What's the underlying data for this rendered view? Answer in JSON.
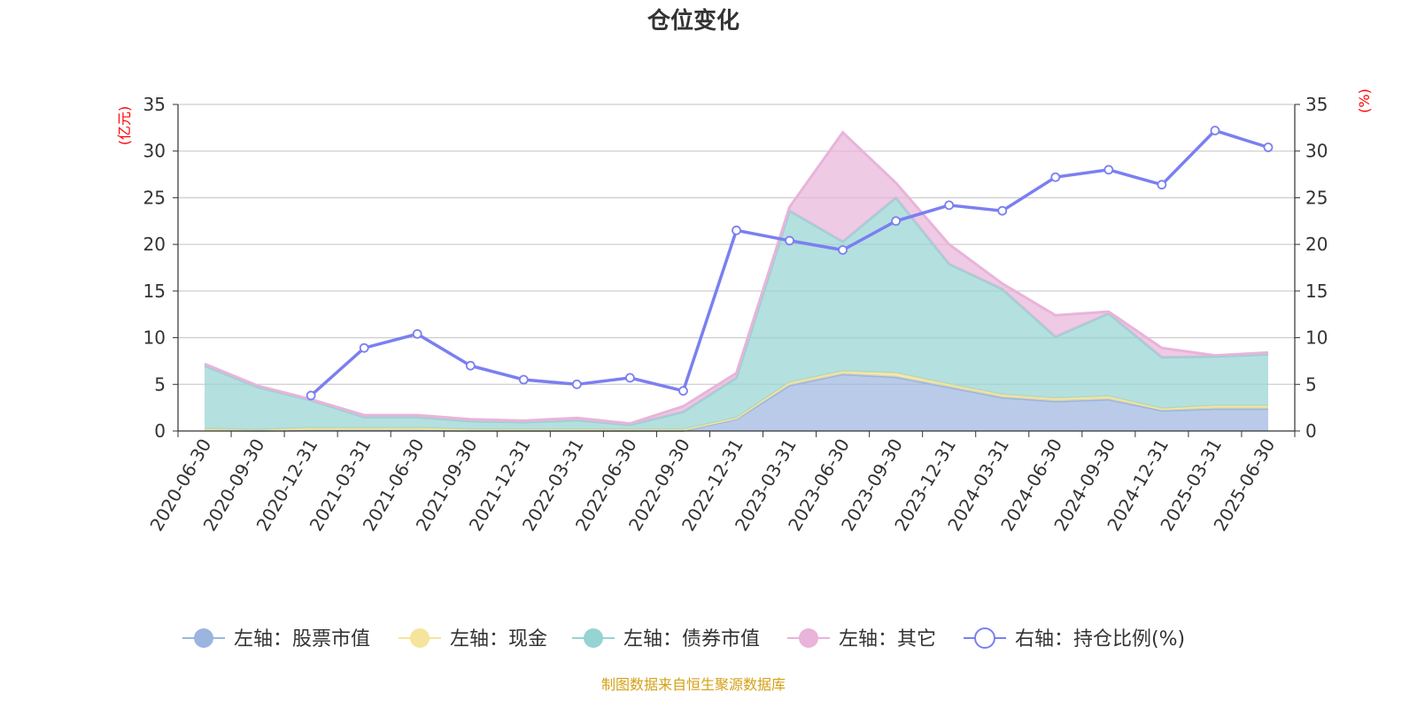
{
  "chart_data": {
    "type": "area",
    "title": "仓位变化",
    "left_axis_unit": "(亿元)",
    "right_axis_unit": "(%)",
    "ylim_left": [
      0,
      35
    ],
    "ylim_right": [
      0,
      35
    ],
    "y_ticks": [
      "0",
      "5",
      "10",
      "15",
      "20",
      "25",
      "30",
      "35"
    ],
    "grid": true,
    "stacked": true,
    "categories": [
      "2020-06-30",
      "2020-09-30",
      "2020-12-31",
      "2021-03-31",
      "2021-06-30",
      "2021-09-30",
      "2021-12-31",
      "2022-03-31",
      "2022-06-30",
      "2022-09-30",
      "2022-12-31",
      "2023-03-31",
      "2023-06-30",
      "2023-09-30",
      "2023-12-31",
      "2024-03-31",
      "2024-06-30",
      "2024-09-30",
      "2024-12-31",
      "2025-03-31",
      "2025-06-30"
    ],
    "series": [
      {
        "name": "左轴：股票市值",
        "axis": "left",
        "color": "#9bb5e0",
        "values": [
          0.1,
          0.05,
          0.1,
          0.1,
          0.1,
          0.05,
          0.05,
          0.05,
          0.05,
          0.05,
          1.3,
          4.9,
          6.1,
          5.8,
          4.7,
          3.6,
          3.2,
          3.4,
          2.2,
          2.4,
          2.4
        ]
      },
      {
        "name": "左轴：现金",
        "axis": "left",
        "color": "#f5e49c",
        "values": [
          0.1,
          0.05,
          0.2,
          0.2,
          0.2,
          0.1,
          0.1,
          0.1,
          0.1,
          0.1,
          0.1,
          0.3,
          0.3,
          0.4,
          0.3,
          0.3,
          0.3,
          0.3,
          0.2,
          0.3,
          0.3
        ]
      },
      {
        "name": "左轴：债券市值",
        "axis": "left",
        "color": "#96d3d3",
        "values": [
          6.8,
          4.6,
          3.0,
          1.2,
          1.2,
          0.9,
          0.8,
          1.0,
          0.5,
          1.9,
          4.3,
          18.4,
          13.9,
          18.8,
          12.9,
          11.3,
          6.6,
          8.9,
          5.5,
          5.3,
          5.5
        ]
      },
      {
        "name": "左轴：其它",
        "axis": "left",
        "color": "#e8b4da",
        "values": [
          0.2,
          0.15,
          0.1,
          0.2,
          0.2,
          0.2,
          0.15,
          0.25,
          0.15,
          0.6,
          0.5,
          0.4,
          11.7,
          1.6,
          2.1,
          0.6,
          2.3,
          0.2,
          1.0,
          0.1,
          0.2
        ]
      },
      {
        "name": "右轴：持仓比例(%)",
        "axis": "right",
        "color": "#7b7ff0",
        "values": [
          null,
          null,
          3.8,
          8.9,
          10.4,
          7.0,
          5.5,
          5.0,
          5.7,
          4.3,
          21.5,
          20.4,
          19.4,
          22.5,
          24.2,
          23.6,
          27.2,
          28.0,
          26.4,
          32.2,
          30.4
        ]
      }
    ],
    "legend_position": "bottom",
    "source_note": "制图数据来自恒生聚源数据库"
  }
}
